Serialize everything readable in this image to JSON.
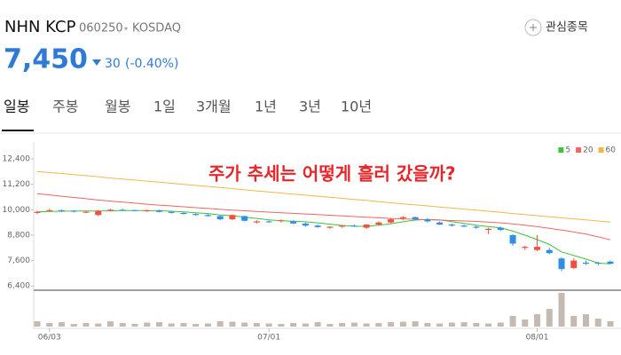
{
  "stock": {
    "name": "NHN KCP",
    "code": "060250",
    "market": "KOSDAQ"
  },
  "watchlist": "관심종목",
  "price": "7,450",
  "change": "30",
  "change_pct": "(-0.40%)",
  "tabs": [
    "일봉",
    "주봉",
    "월봉",
    "1일",
    "3개월",
    "1년",
    "3년",
    "10년"
  ],
  "chart_data": {
    "type": "candlestick",
    "annotation": "주가 추세는 어떻게 흘러 갔을까?",
    "categories": [
      null,
      "06/03",
      null,
      null,
      null,
      null,
      null,
      null,
      null,
      null,
      null,
      null,
      null,
      null,
      null,
      null,
      null,
      null,
      null,
      "07/01",
      null,
      null,
      null,
      null,
      null,
      null,
      null,
      null,
      null,
      null,
      null,
      null,
      null,
      null,
      null,
      null,
      null,
      null,
      null,
      null,
      null,
      "08/01",
      null,
      null,
      null,
      null,
      null,
      null
    ],
    "open": [
      9850,
      9950,
      9980,
      9950,
      9900,
      9750,
      9950,
      10000,
      9980,
      9950,
      9980,
      9900,
      9850,
      9800,
      9750,
      9700,
      9550,
      9700,
      9400,
      9450,
      9480,
      9450,
      9350,
      9250,
      9150,
      9200,
      9250,
      9150,
      9300,
      9400,
      9600,
      9650,
      9550,
      9400,
      9300,
      9250,
      9200,
      9050,
      9150,
      8800,
      8200,
      8100,
      8100,
      7700,
      7250,
      7500,
      7500,
      7550
    ],
    "high": [
      9950,
      10050,
      10000,
      9980,
      9960,
      10000,
      10050,
      10050,
      10000,
      10000,
      10000,
      9950,
      9900,
      9830,
      9800,
      9750,
      9780,
      9720,
      9500,
      9500,
      9550,
      9500,
      9400,
      9300,
      9220,
      9280,
      9300,
      9320,
      9450,
      9600,
      9700,
      9680,
      9600,
      9450,
      9350,
      9300,
      9250,
      9150,
      9200,
      8850,
      8300,
      8800,
      8200,
      7750,
      7700,
      7600,
      7550,
      7600
    ],
    "low": [
      9800,
      9900,
      9900,
      9880,
      9850,
      9700,
      9920,
      9950,
      9930,
      9900,
      9880,
      9820,
      9780,
      9720,
      9680,
      9500,
      9500,
      9450,
      9350,
      9380,
      9400,
      9320,
      9200,
      9150,
      9100,
      9150,
      9200,
      9100,
      9250,
      9350,
      9500,
      9500,
      9400,
      9280,
      9200,
      9180,
      9100,
      8850,
      9000,
      8300,
      8100,
      8050,
      7900,
      7100,
      7200,
      7400,
      7380,
      7420
    ],
    "close": [
      9900,
      9980,
      9950,
      9920,
      9900,
      9950,
      10000,
      9980,
      9950,
      9970,
      9900,
      9850,
      9800,
      9750,
      9700,
      9550,
      9750,
      9480,
      9450,
      9420,
      9500,
      9350,
      9250,
      9180,
      9200,
      9250,
      9220,
      9300,
      9400,
      9550,
      9650,
      9550,
      9450,
      9300,
      9250,
      9200,
      9150,
      9100,
      9050,
      8400,
      8250,
      8250,
      7950,
      7200,
      7600,
      7450,
      7480,
      7450
    ],
    "up_color": "#f0503c",
    "down_color": "#2f8fe0",
    "series": [
      {
        "name": "5",
        "color": "#3cc43c",
        "values": [
          9900,
          9920,
          9930,
          9940,
          9940,
          9940,
          9950,
          9960,
          9960,
          9960,
          9950,
          9930,
          9900,
          9860,
          9820,
          9750,
          9720,
          9650,
          9590,
          9520,
          9480,
          9460,
          9430,
          9380,
          9320,
          9260,
          9220,
          9220,
          9270,
          9340,
          9430,
          9510,
          9540,
          9520,
          9440,
          9350,
          9270,
          9200,
          9150,
          8990,
          8800,
          8590,
          8360,
          8010,
          7840,
          7670,
          7480,
          7450
        ]
      },
      {
        "name": "20",
        "color": "#f06464",
        "values": [
          10760,
          10700,
          10640,
          10580,
          10520,
          10460,
          10410,
          10360,
          10310,
          10260,
          10220,
          10180,
          10140,
          10100,
          10060,
          10020,
          9980,
          9950,
          9920,
          9890,
          9860,
          9830,
          9800,
          9770,
          9740,
          9710,
          9680,
          9650,
          9620,
          9590,
          9570,
          9550,
          9530,
          9510,
          9490,
          9470,
          9450,
          9420,
          9380,
          9330,
          9270,
          9200,
          9120,
          9040,
          8950,
          8850,
          8720,
          8580
        ]
      },
      {
        "name": "60",
        "color": "#f5b44a",
        "values": [
          11810,
          11760,
          11710,
          11660,
          11610,
          11560,
          11500,
          11450,
          11400,
          11350,
          11300,
          11250,
          11200,
          11150,
          11100,
          11050,
          11000,
          10940,
          10890,
          10840,
          10790,
          10740,
          10690,
          10640,
          10590,
          10540,
          10490,
          10440,
          10380,
          10330,
          10280,
          10230,
          10180,
          10130,
          10080,
          10030,
          9980,
          9930,
          9880,
          9820,
          9770,
          9720,
          9670,
          9620,
          9570,
          9520,
          9470,
          9420
        ]
      }
    ],
    "volume": [
      60,
      40,
      50,
      30,
      40,
      35,
      60,
      40,
      30,
      45,
      50,
      35,
      40,
      30,
      35,
      60,
      55,
      45,
      40,
      35,
      30,
      40,
      35,
      50,
      30,
      40,
      45,
      35,
      40,
      50,
      55,
      60,
      40,
      35,
      45,
      50,
      40,
      35,
      45,
      120,
      80,
      140,
      200,
      380,
      120,
      140,
      90,
      60
    ],
    "volume_color": "#c4bab2",
    "ylim": [
      6200,
      13200
    ],
    "yticks": [
      {
        "value": 12400,
        "label": "12,400"
      },
      {
        "value": 11200,
        "label": "11,200"
      },
      {
        "value": 10000,
        "label": "10,000"
      },
      {
        "value": 8800,
        "label": "8,800"
      },
      {
        "value": 7600,
        "label": "7,600"
      },
      {
        "value": 6400,
        "label": "6,400"
      }
    ],
    "legend": "top-right"
  }
}
